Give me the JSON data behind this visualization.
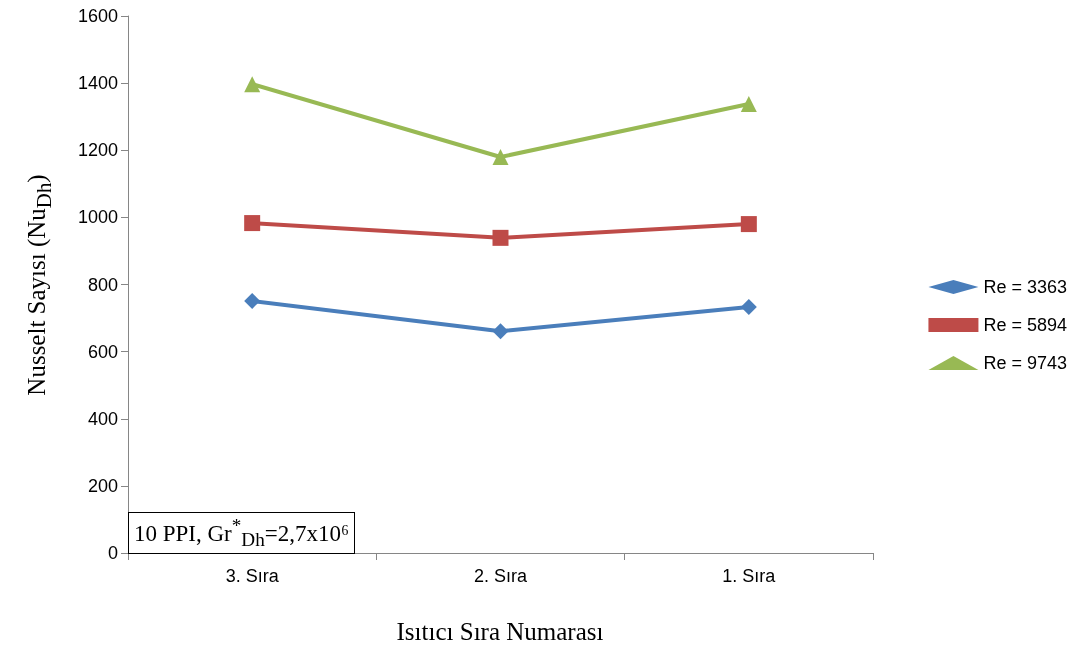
{
  "chart_data": {
    "type": "line",
    "xlabel": "Isıtıcı Sıra Numarası",
    "ylabel": "Nusselt Sayısı (Nu$_{Dh}$)",
    "categories": [
      "3. Sıra",
      "2. Sıra",
      "1. Sıra"
    ],
    "series": [
      {
        "name": "Re = 3363",
        "color": "#4a7ebb",
        "marker": "diamond",
        "values": [
          751,
          661,
          733
        ]
      },
      {
        "name": "Re = 5894",
        "color": "#be4b48",
        "marker": "square",
        "values": [
          983,
          939,
          980
        ]
      },
      {
        "name": "Re = 9743",
        "color": "#98b954",
        "marker": "triangle",
        "values": [
          1397,
          1180,
          1338
        ]
      }
    ],
    "ylim": [
      0,
      1600
    ],
    "yticks": [
      0,
      200,
      400,
      600,
      800,
      1000,
      1200,
      1400,
      1600
    ],
    "grid": false,
    "legend": "right",
    "line_style": "solid",
    "annotations": [
      "10 PPI, Gr$^{*}$$_{Dh}$=2,7x10⁶"
    ]
  }
}
